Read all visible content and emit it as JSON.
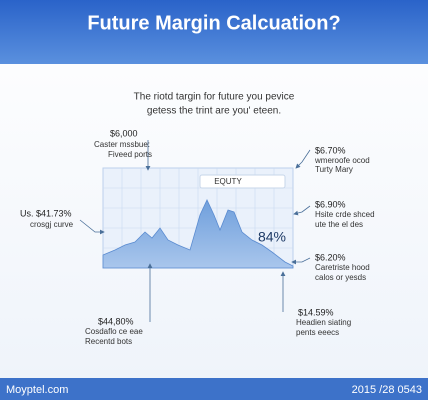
{
  "header": {
    "title": "Future Margin Calcuation?"
  },
  "subtitle": [
    "The riotd targin for future you pevice",
    "getess the trint are you' eteen."
  ],
  "chart": {
    "label": "EQUTY",
    "value_text": "84%"
  },
  "annotations": [
    {
      "value": "$6,000",
      "lines": [
        "Caster mssbue:",
        "Fiveed ports"
      ]
    },
    {
      "value": "Us. $41.73%",
      "lines": [
        "crosgj curve"
      ]
    },
    {
      "value": "$44,80%",
      "lines": [
        "Cosdaflo ce eae",
        "Recentd bots"
      ]
    },
    {
      "value": "$6.70%",
      "lines": [
        "wmeroofe ocod",
        "Turty Mary"
      ]
    },
    {
      "value": "$6.90%",
      "lines": [
        "Hsite crde shced",
        "ute the el des"
      ]
    },
    {
      "value": "$6.20%",
      "lines": [
        "Caretriste hood",
        "calos or yesds"
      ]
    },
    {
      "value": "$14.59%",
      "lines": [
        "Headien siating",
        "pents eeecs"
      ]
    }
  ],
  "footer": {
    "left": "Moyptel.com",
    "right": "2015 /28 0543"
  }
}
